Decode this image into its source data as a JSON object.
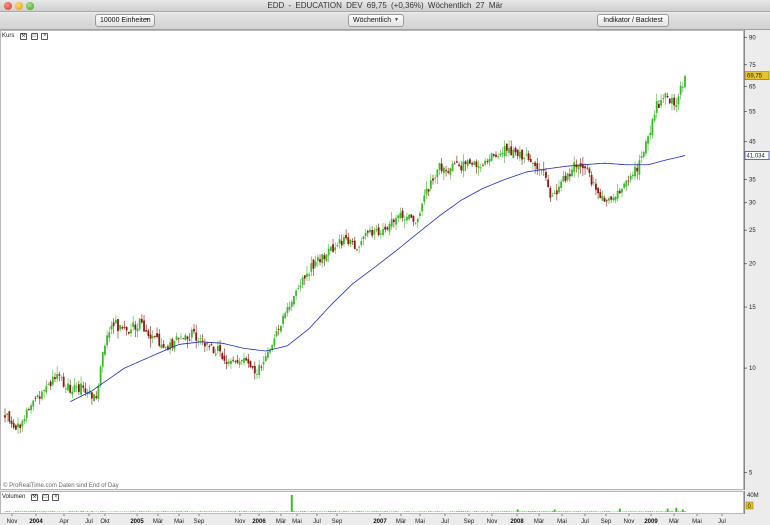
{
  "window": {
    "title": "EDD - EDUCATION DEV    69,75 (+0,36%)    Wöchentlich  27 Mär"
  },
  "toolbar": {
    "units_label": "10000 Einheiten",
    "period_label": "Wöchentlich",
    "indicator_label": "Indikator / Backtest"
  },
  "price_panel": {
    "label": "Kurs",
    "icons": [
      "wrench-icon",
      "window-icon",
      "close-icon"
    ],
    "attribution": "© ProRealTime.com  Daten sind End of Day"
  },
  "volume_panel": {
    "label": "Volumen",
    "icons": [
      "wrench-icon",
      "window-icon",
      "close-icon"
    ]
  },
  "colors": {
    "up": "#3cb82b",
    "down": "#8b1a10",
    "ma": "#1f2fb4",
    "last_price_bg": "#e8c42a",
    "ma_label_border": "#1f2fb4"
  },
  "chart_data": {
    "type": "candlestick",
    "scale": "log",
    "ylim": [
      4.6,
      92
    ],
    "yticks": [
      5,
      10,
      15,
      20,
      25,
      30,
      35,
      45,
      55,
      65,
      75,
      90
    ],
    "last_price_label": "69,75",
    "last_price": 69.75,
    "ma_label": "41,034",
    "ma_value": 41.034,
    "volume_ticks": [
      "40M",
      "0"
    ],
    "x_ticks": [
      {
        "label": "Nov",
        "bold": false
      },
      {
        "label": "2004",
        "bold": true
      },
      {
        "label": "Apr",
        "bold": false
      },
      {
        "label": "Jul",
        "bold": false
      },
      {
        "label": "Okt",
        "bold": false
      },
      {
        "label": "2005",
        "bold": true
      },
      {
        "label": "Mär",
        "bold": false
      },
      {
        "label": "Mai",
        "bold": false
      },
      {
        "label": "Sep",
        "bold": false
      },
      {
        "label": "Nov",
        "bold": false
      },
      {
        "label": "2006",
        "bold": true
      },
      {
        "label": "Mär",
        "bold": false
      },
      {
        "label": "Mai",
        "bold": false
      },
      {
        "label": "Jul",
        "bold": false
      },
      {
        "label": "Sep",
        "bold": false
      },
      {
        "label": "2007",
        "bold": true
      },
      {
        "label": "Mär",
        "bold": false
      },
      {
        "label": "Mai",
        "bold": false
      },
      {
        "label": "Jul",
        "bold": false
      },
      {
        "label": "Sep",
        "bold": false
      },
      {
        "label": "Nov",
        "bold": false
      },
      {
        "label": "2008",
        "bold": true
      },
      {
        "label": "Mär",
        "bold": false
      },
      {
        "label": "Mai",
        "bold": false
      },
      {
        "label": "Jul",
        "bold": false
      },
      {
        "label": "Sep",
        "bold": false
      },
      {
        "label": "Nov",
        "bold": false
      },
      {
        "label": "2009",
        "bold": true
      },
      {
        "label": "Mär",
        "bold": false
      },
      {
        "label": "Mai",
        "bold": false
      },
      {
        "label": "Jul",
        "bold": false
      }
    ],
    "close_path": [
      [
        0,
        7.3
      ],
      [
        6,
        6.8
      ],
      [
        12,
        7.8
      ],
      [
        18,
        8.8
      ],
      [
        24,
        9.4
      ],
      [
        30,
        8.6
      ],
      [
        36,
        8.9
      ],
      [
        42,
        8.2
      ],
      [
        46,
        12.0
      ],
      [
        50,
        13.4
      ],
      [
        56,
        12.8
      ],
      [
        62,
        13.6
      ],
      [
        68,
        12.2
      ],
      [
        74,
        11.4
      ],
      [
        80,
        12.2
      ],
      [
        86,
        12.6
      ],
      [
        92,
        11.8
      ],
      [
        98,
        11.2
      ],
      [
        104,
        10.2
      ],
      [
        110,
        10.8
      ],
      [
        116,
        9.6
      ],
      [
        120,
        10.9
      ],
      [
        126,
        13.0
      ],
      [
        132,
        15.8
      ],
      [
        138,
        18.6
      ],
      [
        144,
        20.5
      ],
      [
        150,
        22.0
      ],
      [
        156,
        23.5
      ],
      [
        162,
        22.5
      ],
      [
        168,
        24.8
      ],
      [
        174,
        24.3
      ],
      [
        180,
        27.0
      ],
      [
        186,
        27.8
      ],
      [
        190,
        26.0
      ],
      [
        194,
        32.5
      ],
      [
        200,
        38.0
      ],
      [
        206,
        37.5
      ],
      [
        212,
        39.0
      ],
      [
        218,
        38.5
      ],
      [
        224,
        40.5
      ],
      [
        230,
        43.0
      ],
      [
        236,
        41.0
      ],
      [
        242,
        39.0
      ],
      [
        248,
        37.5
      ],
      [
        252,
        30.5
      ],
      [
        256,
        34.0
      ],
      [
        262,
        38.5
      ],
      [
        268,
        37.0
      ],
      [
        272,
        32.5
      ],
      [
        276,
        29.5
      ],
      [
        282,
        31.5
      ],
      [
        288,
        36.0
      ],
      [
        292,
        38.5
      ],
      [
        296,
        46.0
      ],
      [
        300,
        57.0
      ],
      [
        304,
        62.0
      ],
      [
        308,
        56.5
      ],
      [
        312,
        67.0
      ],
      [
        313,
        69.75
      ]
    ],
    "ma_path": [
      [
        30,
        8.0
      ],
      [
        40,
        8.6
      ],
      [
        55,
        10.0
      ],
      [
        70,
        11.0
      ],
      [
        80,
        11.7
      ],
      [
        90,
        11.9
      ],
      [
        100,
        11.8
      ],
      [
        110,
        11.4
      ],
      [
        120,
        11.2
      ],
      [
        130,
        11.6
      ],
      [
        140,
        13.0
      ],
      [
        150,
        15.2
      ],
      [
        160,
        17.5
      ],
      [
        170,
        19.5
      ],
      [
        180,
        21.8
      ],
      [
        190,
        24.5
      ],
      [
        200,
        27.5
      ],
      [
        210,
        30.5
      ],
      [
        220,
        33.0
      ],
      [
        230,
        35.0
      ],
      [
        240,
        36.8
      ],
      [
        250,
        37.6
      ],
      [
        258,
        38.2
      ],
      [
        266,
        38.6
      ],
      [
        276,
        39.0
      ],
      [
        286,
        38.6
      ],
      [
        296,
        38.6
      ],
      [
        304,
        39.8
      ],
      [
        313,
        41.034
      ]
    ],
    "candle_count": 314,
    "volume_spikes": [
      [
        132,
        40
      ],
      [
        236,
        6
      ],
      [
        253,
        6
      ],
      [
        283,
        8
      ],
      [
        305,
        8
      ],
      [
        309,
        10
      ],
      [
        312,
        6
      ]
    ]
  }
}
